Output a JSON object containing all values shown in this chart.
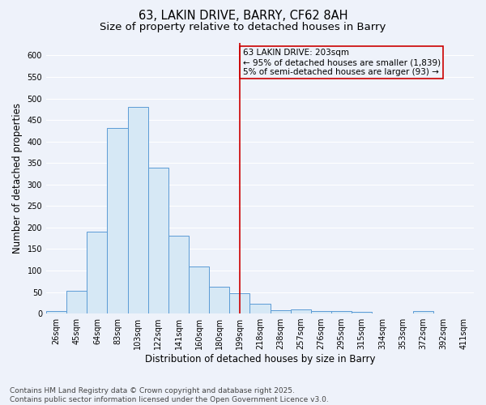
{
  "title_line1": "63, LAKIN DRIVE, BARRY, CF62 8AH",
  "title_line2": "Size of property relative to detached houses in Barry",
  "xlabel": "Distribution of detached houses by size in Barry",
  "ylabel": "Number of detached properties",
  "categories": [
    "26sqm",
    "45sqm",
    "64sqm",
    "83sqm",
    "103sqm",
    "122sqm",
    "141sqm",
    "160sqm",
    "180sqm",
    "199sqm",
    "218sqm",
    "238sqm",
    "257sqm",
    "276sqm",
    "295sqm",
    "315sqm",
    "334sqm",
    "353sqm",
    "372sqm",
    "392sqm",
    "411sqm"
  ],
  "values": [
    5,
    52,
    190,
    432,
    480,
    340,
    180,
    110,
    62,
    47,
    22,
    8,
    10,
    6,
    5,
    4,
    1,
    1,
    5,
    1,
    1
  ],
  "bar_color_fill": "#d6e8f5",
  "bar_color_edge": "#5b9bd5",
  "vline_x_index": 9,
  "vline_color": "#cc0000",
  "annotation_text": "63 LAKIN DRIVE: 203sqm\n← 95% of detached houses are smaller (1,839)\n5% of semi-detached houses are larger (93) →",
  "annotation_box_color": "#cc0000",
  "ylim": [
    0,
    630
  ],
  "yticks": [
    0,
    50,
    100,
    150,
    200,
    250,
    300,
    350,
    400,
    450,
    500,
    550,
    600
  ],
  "footnote": "Contains HM Land Registry data © Crown copyright and database right 2025.\nContains public sector information licensed under the Open Government Licence v3.0.",
  "bg_color": "#eef2fa",
  "grid_color": "#ffffff",
  "title_fontsize": 10.5,
  "subtitle_fontsize": 9.5,
  "axis_label_fontsize": 8.5,
  "tick_fontsize": 7,
  "annot_fontsize": 7.5,
  "footnote_fontsize": 6.5
}
